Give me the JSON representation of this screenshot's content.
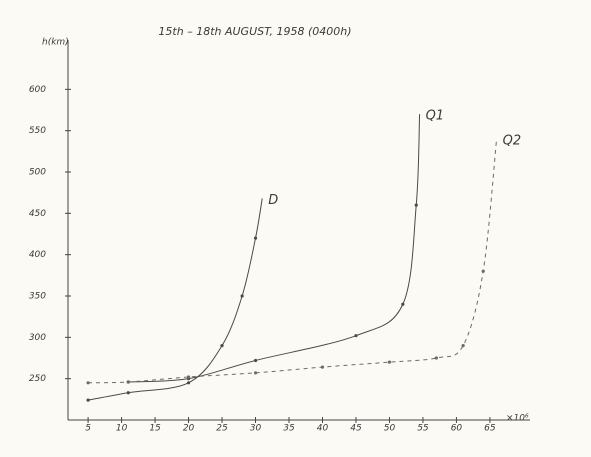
{
  "chart_data": {
    "type": "line",
    "title": "15th – 18th AUGUST, 1958 (0400h)",
    "y_label": "h(km)",
    "x_label": "×10⁶",
    "xlim": [
      2,
      68
    ],
    "xticks": [
      5,
      10,
      15,
      20,
      25,
      30,
      35,
      40,
      45,
      50,
      55,
      60,
      65
    ],
    "ylim": [
      200,
      650
    ],
    "yticks": [
      250,
      300,
      350,
      400,
      450,
      500,
      550,
      600
    ],
    "series": [
      {
        "name": "D",
        "color": "#4a4a4a",
        "dashed": false,
        "x": [
          5,
          11,
          20,
          25,
          28,
          30,
          31
        ],
        "values": [
          224,
          233,
          245,
          290,
          350,
          420,
          468
        ]
      },
      {
        "name": "Q1",
        "color": "#4a4a4a",
        "dashed": false,
        "x": [
          11,
          20,
          30,
          45,
          52,
          54,
          54.5
        ],
        "values": [
          246,
          250,
          272,
          302,
          340,
          460,
          570
        ]
      },
      {
        "name": "Q2",
        "color": "#6a6a6a",
        "dashed": true,
        "x": [
          5,
          11,
          20,
          30,
          40,
          50,
          57,
          61,
          64,
          66
        ],
        "values": [
          245,
          246,
          252,
          257,
          264,
          270,
          275,
          290,
          380,
          540
        ]
      }
    ]
  }
}
